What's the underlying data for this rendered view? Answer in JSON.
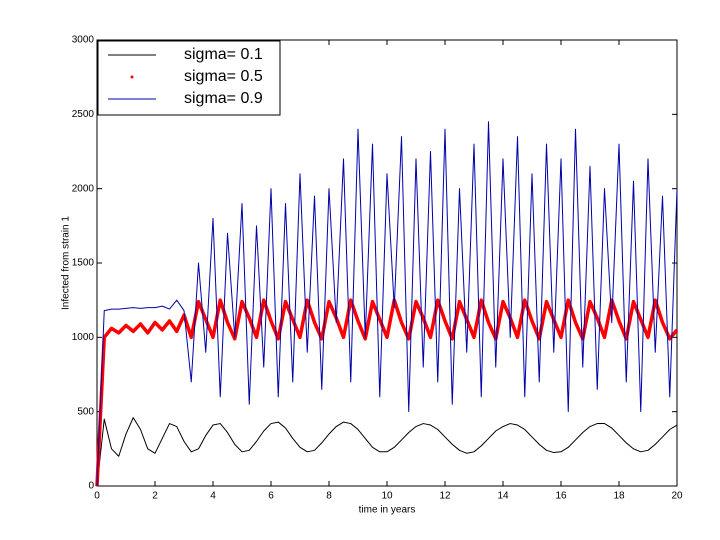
{
  "chart_data": {
    "type": "line",
    "xlabel": "time in years",
    "ylabel": "Infected from strain 1",
    "x": [
      0,
      0.25,
      0.5,
      0.75,
      1,
      1.25,
      1.5,
      1.75,
      2,
      2.25,
      2.5,
      2.75,
      3,
      3.25,
      3.5,
      3.75,
      4,
      4.25,
      4.5,
      4.75,
      5,
      5.25,
      5.5,
      5.75,
      6,
      6.25,
      6.5,
      6.75,
      7,
      7.25,
      7.5,
      7.75,
      8,
      8.25,
      8.5,
      8.75,
      9,
      9.25,
      9.5,
      9.75,
      10,
      10.25,
      10.5,
      10.75,
      11,
      11.25,
      11.5,
      11.75,
      12,
      12.25,
      12.5,
      12.75,
      13,
      13.25,
      13.5,
      13.75,
      14,
      14.25,
      14.5,
      14.75,
      15,
      15.25,
      15.5,
      15.75,
      16,
      16.25,
      16.5,
      16.75,
      17,
      17.25,
      17.5,
      17.75,
      18,
      18.25,
      18.5,
      18.75,
      19,
      19.25,
      19.5,
      19.75,
      20
    ],
    "series": [
      {
        "name": "sigma= 0.1",
        "color": "#000000",
        "style": "line",
        "values": [
          0,
          450,
          250,
          200,
          350,
          460,
          380,
          250,
          220,
          320,
          420,
          400,
          300,
          230,
          250,
          340,
          410,
          420,
          360,
          280,
          230,
          240,
          300,
          370,
          420,
          430,
          390,
          320,
          260,
          230,
          240,
          290,
          350,
          400,
          430,
          420,
          380,
          320,
          260,
          230,
          230,
          260,
          310,
          360,
          400,
          420,
          410,
          380,
          330,
          280,
          240,
          220,
          230,
          270,
          320,
          370,
          400,
          420,
          410,
          380,
          330,
          280,
          240,
          225,
          230,
          260,
          310,
          360,
          400,
          420,
          420,
          390,
          340,
          290,
          250,
          230,
          240,
          280,
          330,
          380,
          410
        ]
      },
      {
        "name": "sigma= 0.5",
        "color": "#ff0000",
        "style": "dots",
        "values": [
          0,
          1000,
          1060,
          1030,
          1080,
          1040,
          1090,
          1030,
          1100,
          1050,
          1110,
          1040,
          1150,
          1000,
          1240,
          1120,
          1000,
          1250,
          1100,
          990,
          1240,
          1130,
          1000,
          1250,
          1110,
          990,
          1240,
          1120,
          1000,
          1250,
          1100,
          990,
          1240,
          1130,
          1000,
          1250,
          1110,
          990,
          1240,
          1120,
          1000,
          1250,
          1100,
          990,
          1240,
          1130,
          1000,
          1250,
          1110,
          990,
          1240,
          1120,
          1000,
          1250,
          1100,
          990,
          1240,
          1130,
          1000,
          1250,
          1110,
          990,
          1240,
          1120,
          1000,
          1250,
          1100,
          990,
          1240,
          1130,
          1000,
          1250,
          1110,
          990,
          1240,
          1120,
          1000,
          1250,
          1100,
          990,
          1050
        ]
      },
      {
        "name": "sigma= 0.9",
        "color": "#0000aa",
        "style": "line",
        "values": [
          0,
          1180,
          1190,
          1190,
          1195,
          1200,
          1195,
          1200,
          1200,
          1210,
          1190,
          1250,
          1180,
          700,
          1500,
          900,
          1800,
          600,
          1700,
          1000,
          1900,
          550,
          1750,
          800,
          2000,
          600,
          1900,
          700,
          2100,
          900,
          1950,
          650,
          2000,
          1100,
          2200,
          700,
          2400,
          1000,
          2300,
          600,
          2100,
          1200,
          2350,
          500,
          2200,
          800,
          2250,
          700,
          2400,
          550,
          2000,
          900,
          2300,
          600,
          2450,
          800,
          2200,
          1000,
          2350,
          600,
          2100,
          700,
          2300,
          900,
          2200,
          500,
          2400,
          800,
          2150,
          650,
          2000,
          1100,
          2300,
          700,
          2050,
          500,
          2200,
          900,
          1950,
          600,
          2000
        ]
      }
    ],
    "xlim": [
      0,
      20
    ],
    "xticks": [
      0,
      2,
      4,
      6,
      8,
      10,
      12,
      14,
      16,
      18,
      20
    ],
    "ylim": [
      0,
      3000
    ],
    "yticks": [
      0,
      500,
      1000,
      1500,
      2000,
      2500,
      3000
    ],
    "legend": "upper left",
    "grid": false
  }
}
